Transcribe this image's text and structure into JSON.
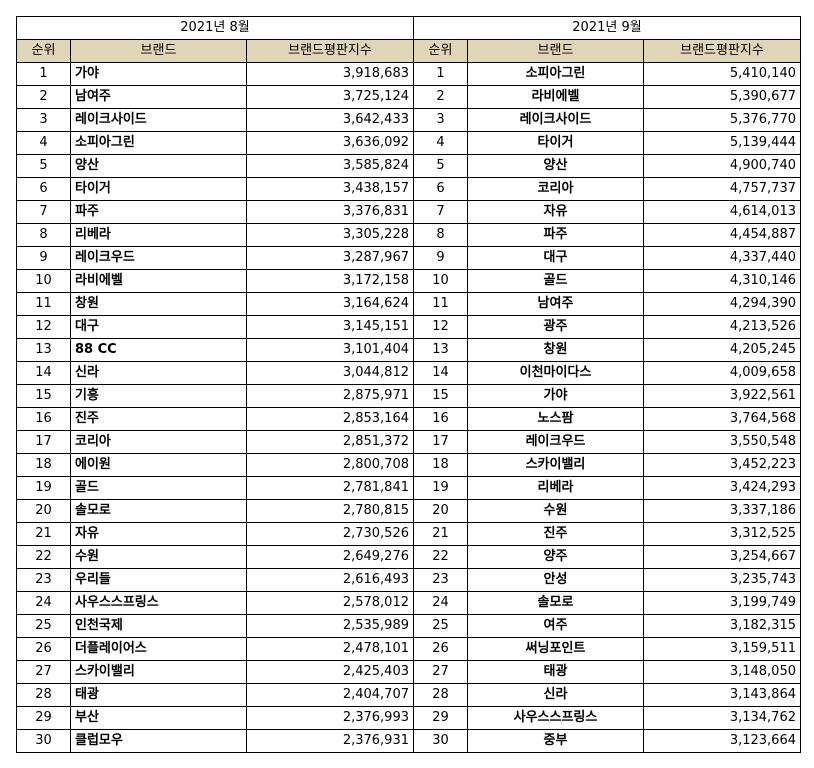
{
  "tables": [
    {
      "month": "2021년 8월",
      "headers": [
        "순위",
        "브랜드",
        "브랜드평판지수"
      ],
      "rows": [
        [
          "1",
          "가야",
          "3,918,683"
        ],
        [
          "2",
          "남여주",
          "3,725,124"
        ],
        [
          "3",
          "레이크사이드",
          "3,642,433"
        ],
        [
          "4",
          "소피아그린",
          "3,636,092"
        ],
        [
          "5",
          "양산",
          "3,585,824"
        ],
        [
          "6",
          "타이거",
          "3,438,157"
        ],
        [
          "7",
          "파주",
          "3,376,831"
        ],
        [
          "8",
          "리베라",
          "3,305,228"
        ],
        [
          "9",
          "레이크우드",
          "3,287,967"
        ],
        [
          "10",
          "라비에벨",
          "3,172,158"
        ],
        [
          "11",
          "창원",
          "3,164,624"
        ],
        [
          "12",
          "대구",
          "3,145,151"
        ],
        [
          "13",
          "88 CC",
          "3,101,404"
        ],
        [
          "14",
          "신라",
          "3,044,812"
        ],
        [
          "15",
          "기흥",
          "2,875,971"
        ],
        [
          "16",
          "진주",
          "2,853,164"
        ],
        [
          "17",
          "코리아",
          "2,851,372"
        ],
        [
          "18",
          "에이원",
          "2,800,708"
        ],
        [
          "19",
          "골드",
          "2,781,841"
        ],
        [
          "20",
          "솔모로",
          "2,780,815"
        ],
        [
          "21",
          "자유",
          "2,730,526"
        ],
        [
          "22",
          "수원",
          "2,649,276"
        ],
        [
          "23",
          "우리들",
          "2,616,493"
        ],
        [
          "24",
          "사우스스프링스",
          "2,578,012"
        ],
        [
          "25",
          "인천국제",
          "2,535,989"
        ],
        [
          "26",
          "더플레이어스",
          "2,478,101"
        ],
        [
          "27",
          "스카이밸리",
          "2,425,403"
        ],
        [
          "28",
          "태광",
          "2,404,707"
        ],
        [
          "29",
          "부산",
          "2,376,993"
        ],
        [
          "30",
          "클럽모우",
          "2,376,931"
        ]
      ]
    },
    {
      "month": "2021년 9월",
      "headers": [
        "순위",
        "브랜드",
        "브랜드평판지수"
      ],
      "rows": [
        [
          "1",
          "소피아그린",
          "5,410,140"
        ],
        [
          "2",
          "라비에벨",
          "5,390,677"
        ],
        [
          "3",
          "레이크사이드",
          "5,376,770"
        ],
        [
          "4",
          "타이거",
          "5,139,444"
        ],
        [
          "5",
          "양산",
          "4,900,740"
        ],
        [
          "6",
          "코리아",
          "4,757,737"
        ],
        [
          "7",
          "자유",
          "4,614,013"
        ],
        [
          "8",
          "파주",
          "4,454,887"
        ],
        [
          "9",
          "대구",
          "4,337,440"
        ],
        [
          "10",
          "골드",
          "4,310,146"
        ],
        [
          "11",
          "남여주",
          "4,294,390"
        ],
        [
          "12",
          "광주",
          "4,213,526"
        ],
        [
          "13",
          "창원",
          "4,205,245"
        ],
        [
          "14",
          "이천마이다스",
          "4,009,658"
        ],
        [
          "15",
          "가야",
          "3,922,561"
        ],
        [
          "16",
          "노스팜",
          "3,764,568"
        ],
        [
          "17",
          "레이크우드",
          "3,550,548"
        ],
        [
          "18",
          "스카이밸리",
          "3,452,223"
        ],
        [
          "19",
          "리베라",
          "3,424,293"
        ],
        [
          "20",
          "수원",
          "3,337,186"
        ],
        [
          "21",
          "진주",
          "3,312,525"
        ],
        [
          "22",
          "양주",
          "3,254,667"
        ],
        [
          "23",
          "안성",
          "3,235,743"
        ],
        [
          "24",
          "솔모로",
          "3,199,749"
        ],
        [
          "25",
          "여주",
          "3,182,315"
        ],
        [
          "26",
          "써닝포인트",
          "3,159,511"
        ],
        [
          "27",
          "태광",
          "3,148,050"
        ],
        [
          "28",
          "신라",
          "3,143,864"
        ],
        [
          "29",
          "사우스스프링스",
          "3,134,762"
        ],
        [
          "30",
          "중부",
          "3,123,664"
        ]
      ]
    }
  ],
  "header_color": "#dfd6b8"
}
